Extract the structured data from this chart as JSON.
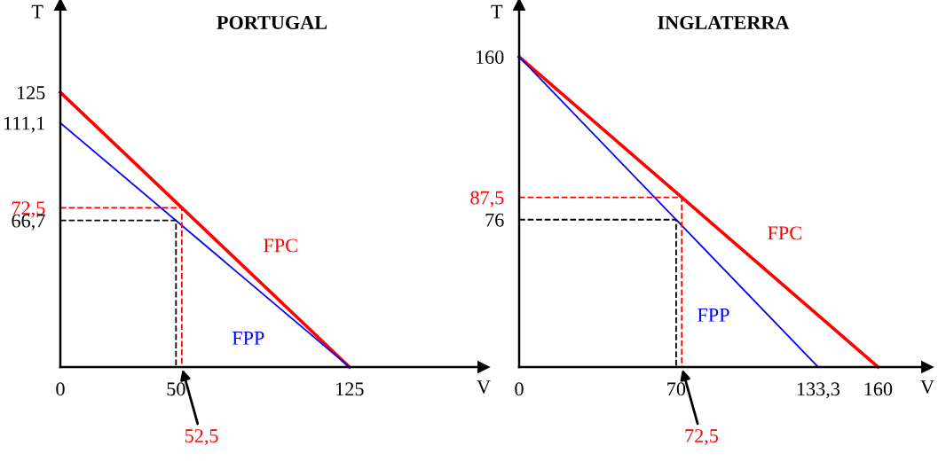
{
  "chart_data": [
    {
      "type": "line",
      "title": "PORTUGAL",
      "xlabel": "V",
      "ylabel": "T",
      "xlim": [
        0,
        183
      ],
      "ylim": [
        0,
        165
      ],
      "grid": false,
      "legend": false,
      "line_style": "solid",
      "marker": "none",
      "xticks": [
        0,
        50,
        125
      ],
      "yticks": [
        125,
        {
          "value": 111.1,
          "label": "111,1"
        },
        {
          "value": 72.5,
          "label": "72,5"
        },
        {
          "value": 66.7,
          "label": "66,7"
        }
      ],
      "series": [
        {
          "name": "FPC",
          "color": "#ff0000",
          "x": [
            0,
            125
          ],
          "values": [
            125,
            0
          ]
        },
        {
          "name": "FPP",
          "color": "#0000ff",
          "x": [
            0,
            125
          ],
          "values": [
            111.1,
            0
          ]
        },
        {
          "color": "#000000",
          "line_style": "dashed",
          "x": [
            0,
            50,
            50
          ],
          "values": [
            66.7,
            66.7,
            0
          ]
        },
        {
          "color": "#ff0000",
          "line_style": "dashed",
          "x": [
            0,
            52.5,
            52.5
          ],
          "values": [
            72.5,
            72.5,
            0
          ]
        }
      ],
      "annotations": [
        {
          "text": "52,5",
          "x": 52.5,
          "y": 0
        }
      ]
    },
    {
      "type": "line",
      "title": "INGLATERRA",
      "xlabel": "V",
      "ylabel": "T",
      "xlim": [
        0,
        182
      ],
      "ylim": [
        0,
        187
      ],
      "grid": false,
      "legend": false,
      "line_style": "solid",
      "marker": "none",
      "xticks": [
        0,
        70,
        {
          "value": 133.3,
          "label": "133,3"
        },
        160
      ],
      "yticks": [
        160,
        {
          "value": 87.5,
          "label": "87,5"
        },
        76
      ],
      "series": [
        {
          "name": "FPC",
          "color": "#ff0000",
          "x": [
            0,
            160
          ],
          "values": [
            160,
            0
          ]
        },
        {
          "name": "FPP",
          "color": "#0000ff",
          "x": [
            0,
            133.3
          ],
          "values": [
            160,
            0
          ]
        },
        {
          "color": "#000000",
          "line_style": "dashed",
          "x": [
            0,
            70,
            70
          ],
          "values": [
            76,
            76,
            0
          ]
        },
        {
          "color": "#ff0000",
          "line_style": "dashed",
          "x": [
            0,
            72.5,
            72.5
          ],
          "values": [
            87.5,
            87.5,
            0
          ]
        }
      ],
      "annotations": [
        {
          "text": "72,5",
          "x": 72.5,
          "y": 0
        }
      ]
    }
  ]
}
